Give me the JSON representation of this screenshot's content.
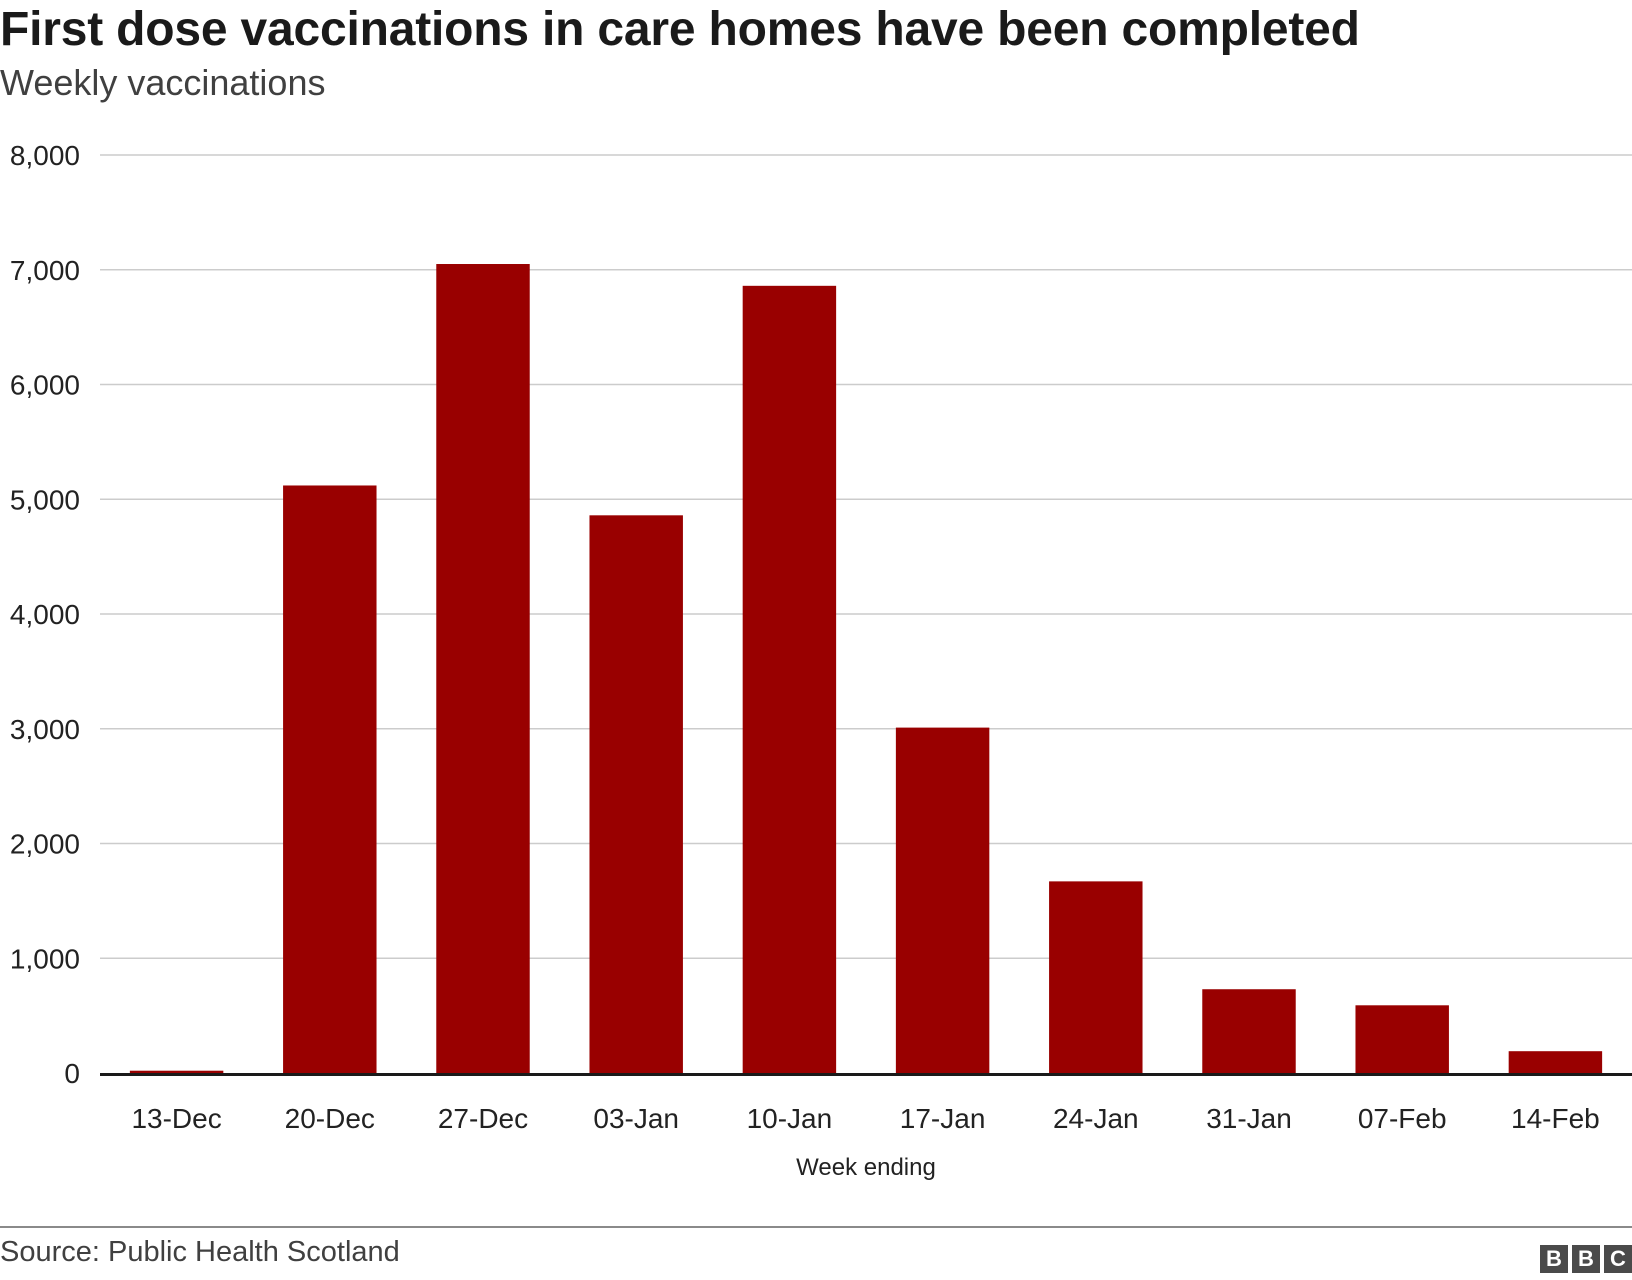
{
  "header": {
    "title": "First dose vaccinations in care homes have been completed",
    "subtitle": "Weekly vaccinations"
  },
  "footer": {
    "source": "Source: Public Health Scotland",
    "logo_letters": [
      "B",
      "B",
      "C"
    ]
  },
  "colors": {
    "bar": "#990000",
    "grid": "#cccccc",
    "baseline": "#1a1a1a"
  },
  "chart_data": {
    "type": "bar",
    "title": "First dose vaccinations in care homes have been completed",
    "subtitle": "Weekly vaccinations",
    "xlabel": "Week ending",
    "ylabel": "",
    "categories": [
      "13-Dec",
      "20-Dec",
      "27-Dec",
      "03-Jan",
      "10-Jan",
      "17-Jan",
      "24-Jan",
      "31-Jan",
      "07-Feb",
      "14-Feb"
    ],
    "values": [
      20,
      5120,
      7050,
      4860,
      6860,
      3010,
      1670,
      730,
      590,
      190
    ],
    "ylim": [
      0,
      8000
    ],
    "yticks": [
      0,
      1000,
      2000,
      3000,
      4000,
      5000,
      6000,
      7000,
      8000
    ],
    "ytick_labels": [
      "0",
      "1,000",
      "2,000",
      "3,000",
      "4,000",
      "5,000",
      "6,000",
      "7,000",
      "8,000"
    ],
    "grid": true,
    "legend": "none"
  }
}
